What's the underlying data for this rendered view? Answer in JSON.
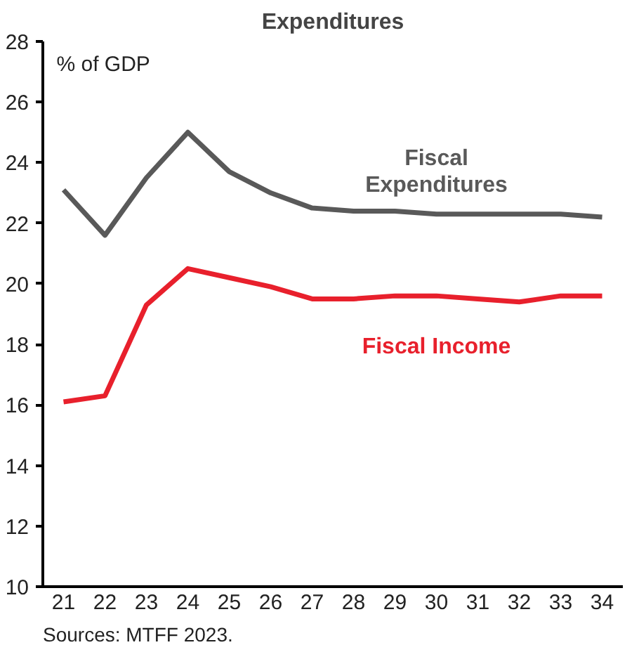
{
  "chart_data": {
    "type": "line",
    "title": "Expenditures",
    "ylabel": "% of GDP",
    "categories": [
      "21",
      "22",
      "23",
      "24",
      "25",
      "26",
      "27",
      "28",
      "29",
      "30",
      "31",
      "32",
      "33",
      "34"
    ],
    "series": [
      {
        "name": "Fiscal Expenditures",
        "color": "#595959",
        "values": [
          23.1,
          21.6,
          23.5,
          25.0,
          23.7,
          23.0,
          22.5,
          22.4,
          22.4,
          22.3,
          22.3,
          22.3,
          22.3,
          22.2
        ]
      },
      {
        "name": "Fiscal Income",
        "color": "#e8202c",
        "values": [
          16.1,
          16.3,
          19.3,
          20.5,
          20.2,
          19.9,
          19.5,
          19.5,
          19.6,
          19.6,
          19.5,
          19.4,
          19.6,
          19.6
        ]
      }
    ],
    "ylim": [
      10,
      28
    ],
    "yticks": [
      10,
      12,
      14,
      16,
      18,
      20,
      22,
      24,
      26,
      28
    ],
    "grid": false,
    "marker": "none",
    "line_style": "solid",
    "annotations": [
      "Sources: MTFF 2023."
    ]
  }
}
